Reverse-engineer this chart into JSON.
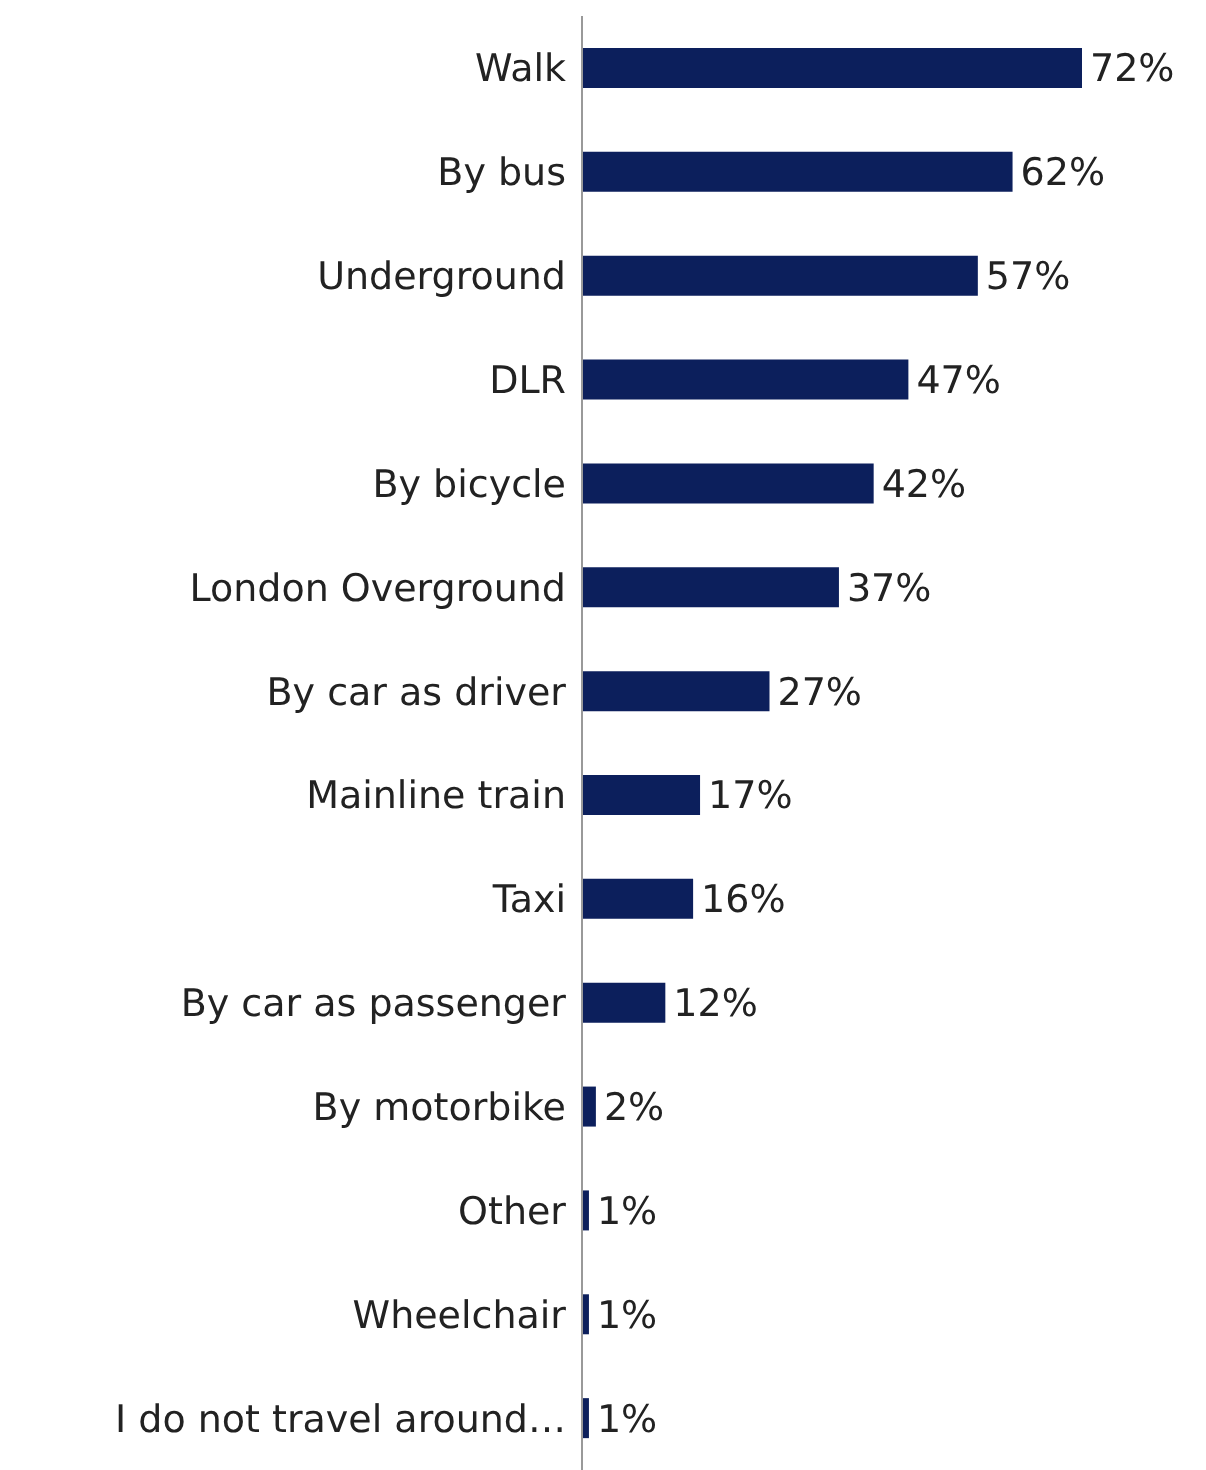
{
  "chart_data": {
    "type": "bar",
    "orientation": "horizontal",
    "categories": [
      "Walk",
      "By bus",
      "Underground",
      "DLR",
      "By bicycle",
      "London Overground",
      "By car as driver",
      "Mainline train",
      "Taxi",
      "By car as passenger",
      "By motorbike",
      "Other",
      "Wheelchair",
      "I do not travel around…"
    ],
    "values": [
      72,
      62,
      57,
      47,
      42,
      37,
      27,
      17,
      16,
      12,
      2,
      1,
      1,
      1
    ],
    "value_labels": [
      "72%",
      "62%",
      "57%",
      "47%",
      "42%",
      "37%",
      "27%",
      "17%",
      "16%",
      "12%",
      "2%",
      "1%",
      "1%",
      "1%"
    ],
    "color": "#0c1f5c",
    "grid": false,
    "tick_labels": "y"
  }
}
